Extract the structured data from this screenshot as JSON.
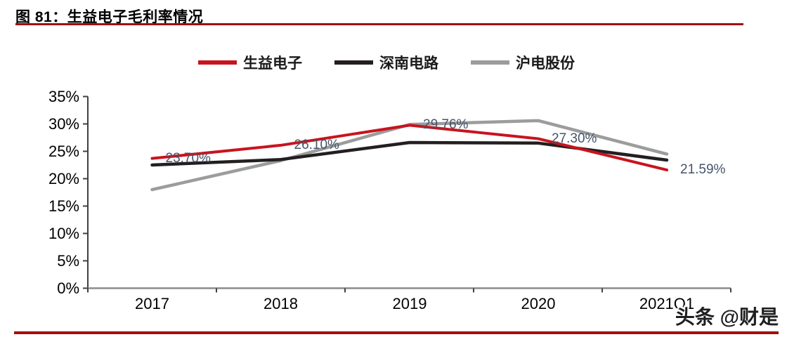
{
  "figure": {
    "title": "图 81：生益电子毛利率情况",
    "rule_color": "#A01010"
  },
  "watermark": "头条 @财是",
  "chart_data": {
    "type": "line",
    "title": "生益电子毛利率情况",
    "categories": [
      "2017",
      "2018",
      "2019",
      "2020",
      "2021Q1"
    ],
    "series": [
      {
        "name": "生益电子",
        "color": "#C8141E",
        "values": [
          23.7,
          26.1,
          29.76,
          27.3,
          21.59
        ],
        "labels": [
          "23.70%",
          "26.10%",
          "29.76%",
          "27.30%",
          "21.59%"
        ]
      },
      {
        "name": "深南电路",
        "color": "#231F20",
        "values": [
          22.5,
          23.5,
          26.6,
          26.5,
          23.4
        ]
      },
      {
        "name": "沪电股份",
        "color": "#9C9C9C",
        "values": [
          18.0,
          23.3,
          29.9,
          30.6,
          24.5
        ]
      }
    ],
    "xlabel": "",
    "ylabel": "",
    "ylim": [
      0,
      35
    ],
    "ytick_step": 5,
    "yticks": [
      "0%",
      "5%",
      "10%",
      "15%",
      "20%",
      "25%",
      "30%",
      "35%"
    ],
    "grid": false,
    "legend_position": "top",
    "data_label_color": "#44546A",
    "axis_line_color": "#8C8C8C",
    "tick_color": "#404040"
  }
}
